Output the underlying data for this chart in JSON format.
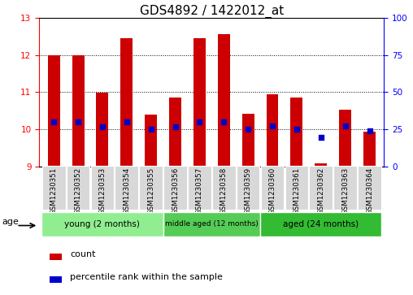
{
  "title": "GDS4892 / 1422012_at",
  "samples": [
    "GSM1230351",
    "GSM1230352",
    "GSM1230353",
    "GSM1230354",
    "GSM1230355",
    "GSM1230356",
    "GSM1230357",
    "GSM1230358",
    "GSM1230359",
    "GSM1230360",
    "GSM1230361",
    "GSM1230362",
    "GSM1230363",
    "GSM1230364"
  ],
  "count_values": [
    12.0,
    12.0,
    10.98,
    12.45,
    10.4,
    10.85,
    12.45,
    12.55,
    10.42,
    10.95,
    10.85,
    9.1,
    10.52,
    9.95
  ],
  "percentile_values": [
    10.2,
    10.2,
    10.07,
    10.2,
    10.0,
    10.07,
    10.2,
    10.2,
    10.0,
    10.1,
    10.0,
    9.78,
    10.1,
    9.96
  ],
  "ymin": 9,
  "ymax": 13,
  "yticks_left": [
    9,
    10,
    11,
    12,
    13
  ],
  "yticks_right": [
    0,
    25,
    50,
    75,
    100
  ],
  "bar_color": "#cc0000",
  "dot_color": "#0000cc",
  "bar_width": 0.5,
  "group_configs": [
    {
      "label": "young (2 months)",
      "start": 0,
      "end": 4,
      "color": "#90EE90"
    },
    {
      "label": "middle aged (12 months)",
      "start": 5,
      "end": 8,
      "color": "#55CC55"
    },
    {
      "label": "aged (24 months)",
      "start": 9,
      "end": 13,
      "color": "#33BB33"
    }
  ],
  "age_label": "age",
  "legend_count_label": "count",
  "legend_percentile_label": "percentile rank within the sample",
  "title_fontsize": 11,
  "tick_fontsize": 7.5,
  "grid_yticks": [
    10,
    11,
    12
  ]
}
